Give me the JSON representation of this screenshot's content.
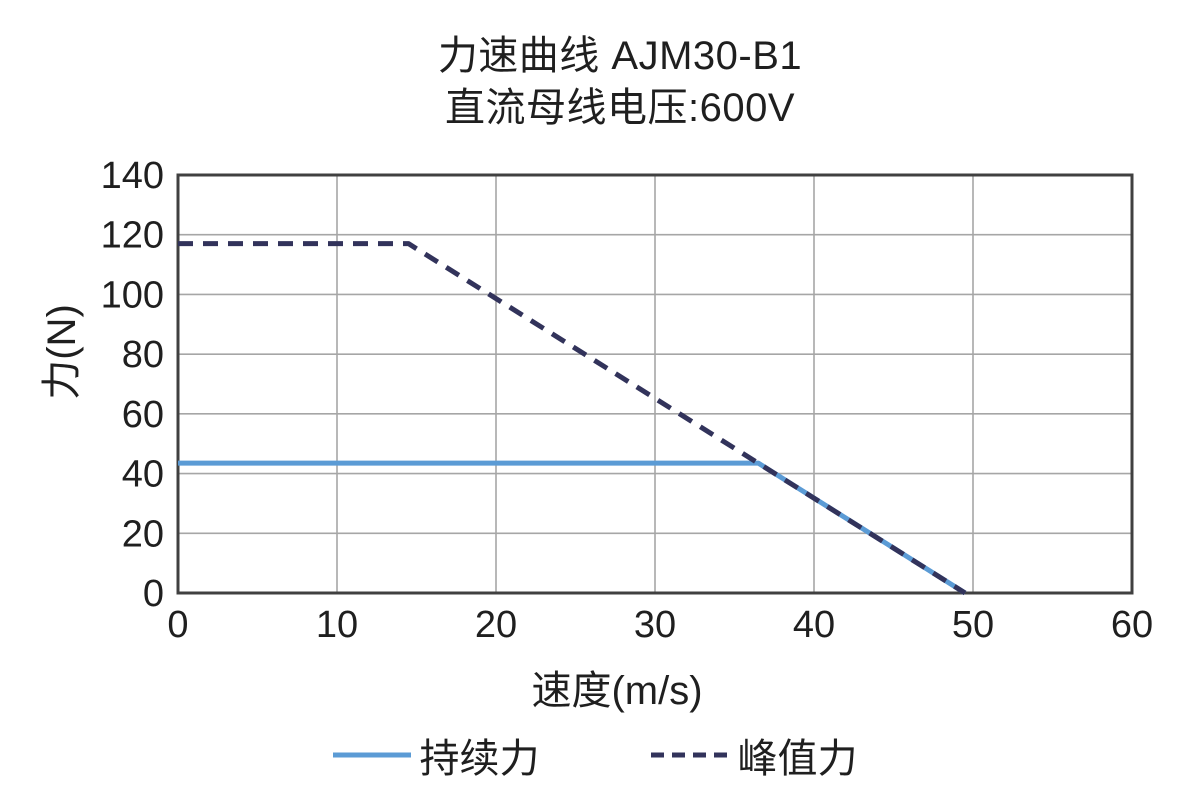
{
  "page": {
    "background": "#FFFFFF"
  },
  "colors": {
    "text": "#1F1F1F",
    "gridline": "#A6A6A6",
    "plot_border": "#404040",
    "continuous_force": "#5B9BD5",
    "peak_force": "#32335B"
  },
  "chart_data": {
    "type": "line",
    "title": "力速曲线 AJM30-B1",
    "subtitle": "直流母线电压:600V",
    "xlabel": "速度(m/s)",
    "ylabel": "力(N)",
    "xlim": [
      0,
      60
    ],
    "ylim": [
      0,
      140
    ],
    "x_ticks": [
      0,
      10,
      20,
      30,
      40,
      50,
      60
    ],
    "y_ticks": [
      0,
      20,
      40,
      60,
      80,
      100,
      120,
      140
    ],
    "grid": true,
    "legend_position": "bottom",
    "series": [
      {
        "name": "持续力",
        "style": "solid",
        "color": "#5B9BD5",
        "points": [
          [
            0,
            43.5
          ],
          [
            36.5,
            43.5
          ],
          [
            49.5,
            0
          ]
        ]
      },
      {
        "name": "峰值力",
        "style": "dashed",
        "color": "#32335B",
        "points": [
          [
            0,
            117
          ],
          [
            14.5,
            117
          ],
          [
            49.5,
            0
          ]
        ]
      }
    ]
  }
}
